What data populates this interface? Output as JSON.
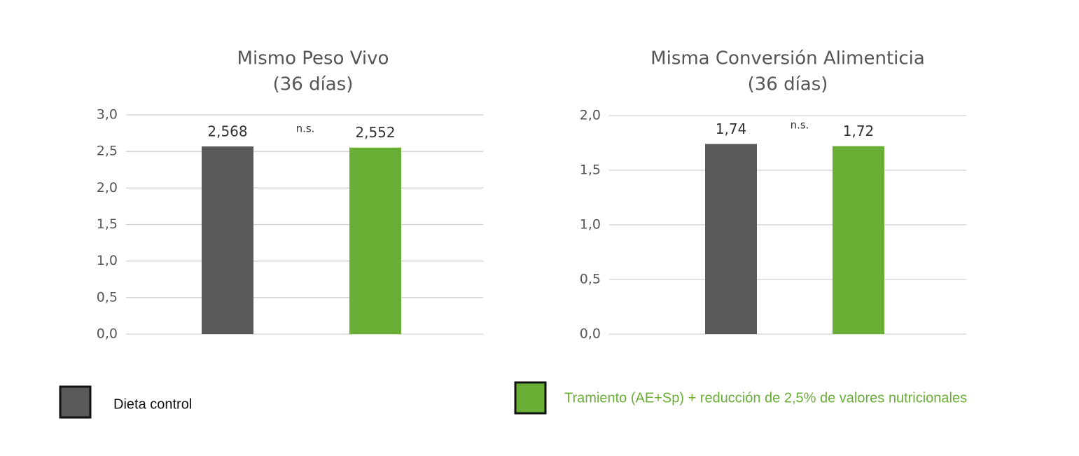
{
  "chart_data": [
    {
      "type": "bar",
      "title": "Mismo Peso Vivo",
      "subtitle": "(36 días)",
      "values": [
        2.568,
        2.552
      ],
      "value_labels": [
        "2,568",
        "2,552"
      ],
      "annotation": "n.s.",
      "ylim": [
        0,
        3
      ],
      "yticks": [
        {
          "value": 0,
          "label": "0,0"
        },
        {
          "value": 0.5,
          "label": "0,5"
        },
        {
          "value": 1,
          "label": "1,0"
        },
        {
          "value": 1.5,
          "label": "1,5"
        },
        {
          "value": 2,
          "label": "2,0"
        },
        {
          "value": 2.5,
          "label": "2,5"
        },
        {
          "value": 3,
          "label": "3,0"
        }
      ],
      "grid": true
    },
    {
      "type": "bar",
      "title": "Misma Conversión Alimenticia",
      "subtitle": "(36 días)",
      "values": [
        1.74,
        1.72
      ],
      "value_labels": [
        "1,74",
        "1,72"
      ],
      "annotation": "n.s.",
      "ylim": [
        0,
        2
      ],
      "yticks": [
        {
          "value": 0,
          "label": "0,0"
        },
        {
          "value": 0.5,
          "label": "0,5"
        },
        {
          "value": 1,
          "label": "1,0"
        },
        {
          "value": 1.5,
          "label": "1,5"
        },
        {
          "value": 2,
          "label": "2,0"
        }
      ],
      "grid": true
    }
  ],
  "legend": {
    "items": [
      {
        "label": "Dieta control",
        "color": "#595959"
      },
      {
        "label": "Tramiento (AE+Sp) + reducción de 2,5% de valores nutricionales",
        "color": "#6aaf35"
      }
    ]
  }
}
